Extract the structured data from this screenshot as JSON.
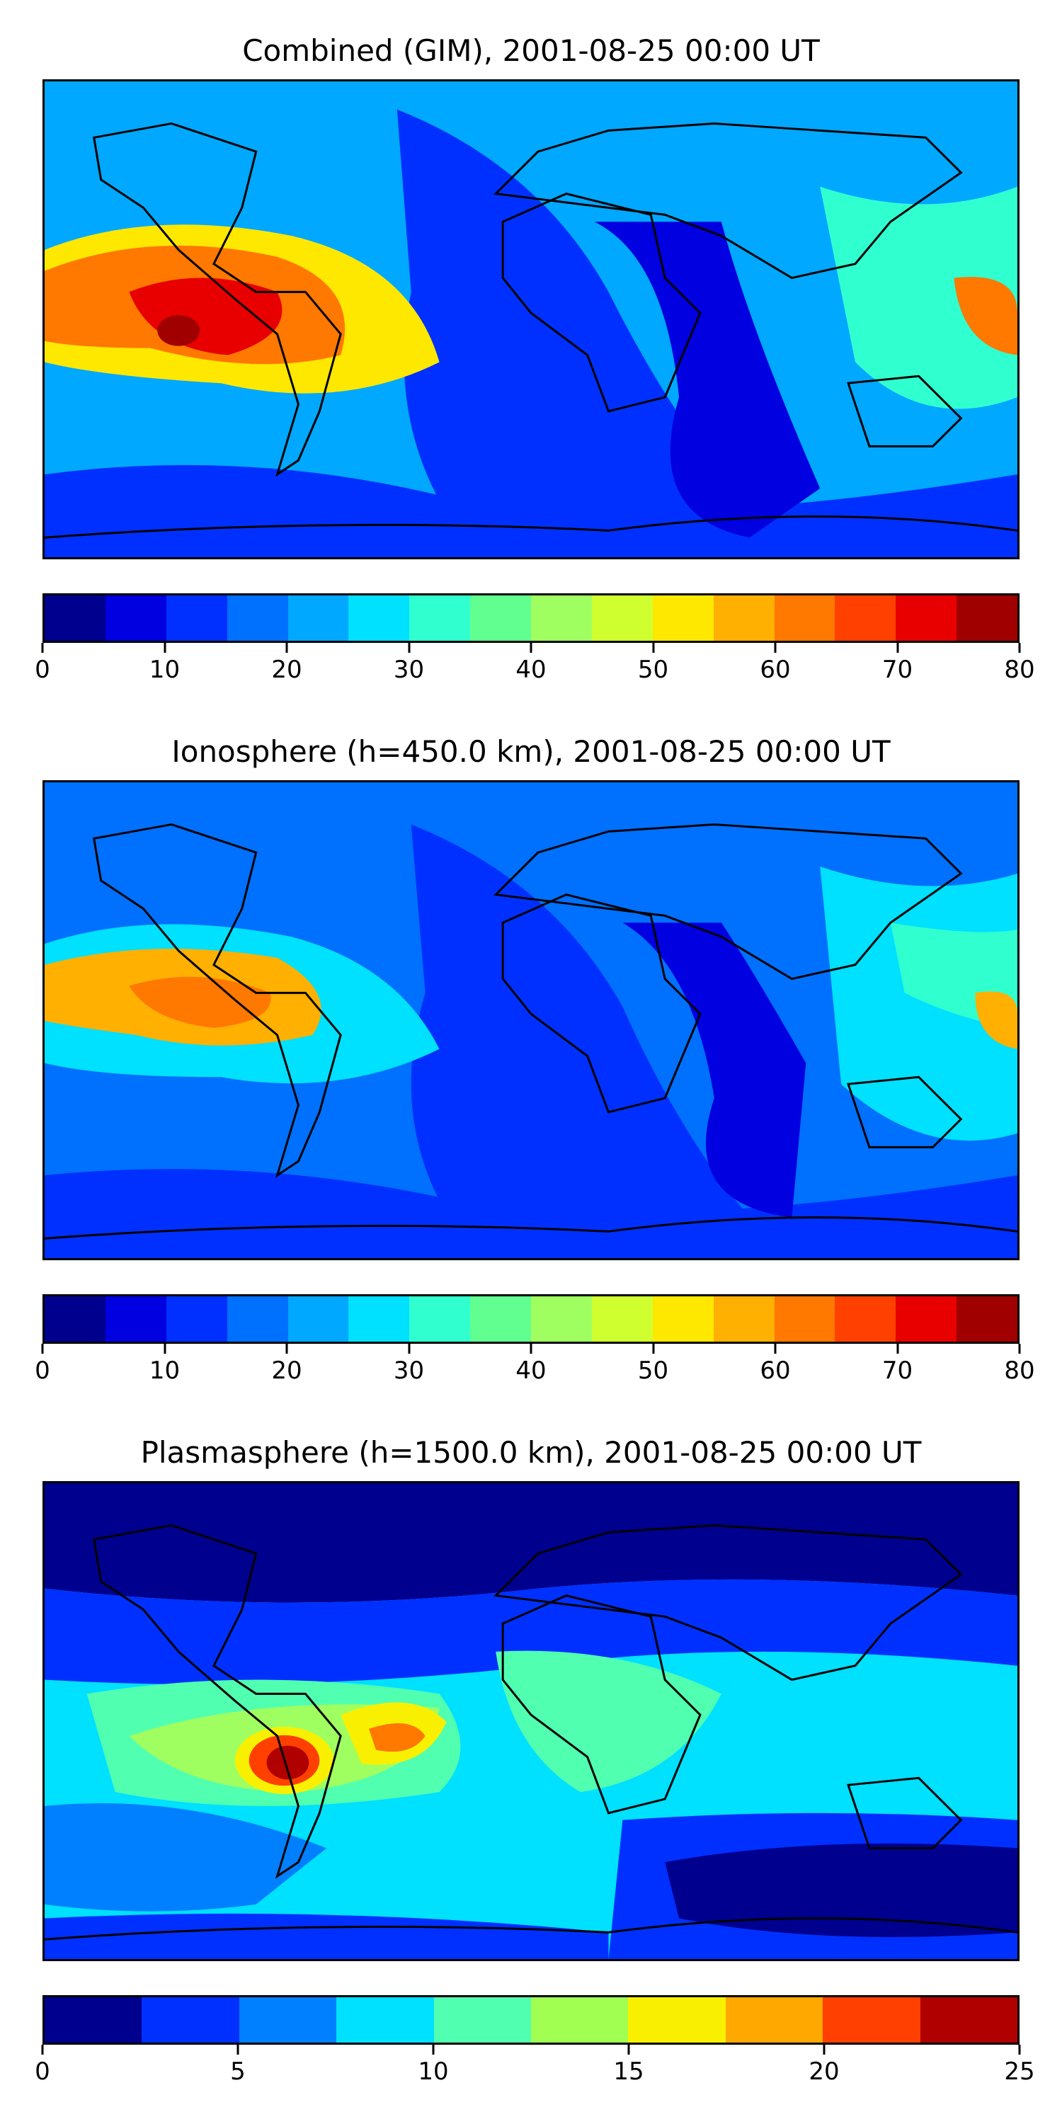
{
  "panels": [
    {
      "title": "Combined (GIM), 2001-08-25 00:00 UT",
      "colorbar": {
        "colors": [
          "#00008f",
          "#0000e0",
          "#0030ff",
          "#0070ff",
          "#00a8ff",
          "#00e0ff",
          "#30ffd0",
          "#60ff90",
          "#a0ff60",
          "#d0ff30",
          "#ffe800",
          "#ffb000",
          "#ff7800",
          "#ff4000",
          "#e80000",
          "#a00000"
        ],
        "tick_labels": [
          "0",
          "10",
          "20",
          "30",
          "40",
          "50",
          "60",
          "70",
          "80"
        ],
        "range": [
          0,
          80
        ]
      },
      "map_colors": {
        "bg": "#00a8ff",
        "low": "#0030ff",
        "lowest": "#0000e0",
        "mid": "#30ffd0",
        "high": "#ffe800",
        "higher": "#ff7800",
        "peak": "#e80000",
        "max": "#a00000"
      }
    },
    {
      "title": "Ionosphere  (h=450.0 km), 2001-08-25 00:00 UT",
      "colorbar": {
        "colors": [
          "#00008f",
          "#0000e0",
          "#0030ff",
          "#0070ff",
          "#00a8ff",
          "#00e0ff",
          "#30ffd0",
          "#60ff90",
          "#a0ff60",
          "#d0ff30",
          "#ffe800",
          "#ffb000",
          "#ff7800",
          "#ff4000",
          "#e80000",
          "#a00000"
        ],
        "tick_labels": [
          "0",
          "10",
          "20",
          "30",
          "40",
          "50",
          "60",
          "70",
          "80"
        ],
        "range": [
          0,
          80
        ]
      },
      "map_colors": {
        "bg": "#0070ff",
        "low": "#0030ff",
        "lowest": "#0000e0",
        "mid": "#00e0ff",
        "high": "#ffb000",
        "higher": "#ff7800"
      }
    },
    {
      "title": "Plasmasphere (h=1500.0 km), 2001-08-25 00:00 UT",
      "colorbar": {
        "colors": [
          "#00008f",
          "#0030ff",
          "#0080ff",
          "#00e0ff",
          "#50ffb0",
          "#a0ff50",
          "#f8f000",
          "#ffa800",
          "#ff4000",
          "#b00000"
        ],
        "tick_labels": [
          "0",
          "5",
          "10",
          "15",
          "20",
          "25"
        ],
        "range": [
          0,
          25
        ]
      },
      "map_colors": {
        "bg": "#00e0ff",
        "low": "#0030ff",
        "lowest": "#00008f",
        "mid": "#50ffb0",
        "high": "#f8f000",
        "higher": "#ff4000",
        "peak": "#b00000"
      }
    }
  ]
}
